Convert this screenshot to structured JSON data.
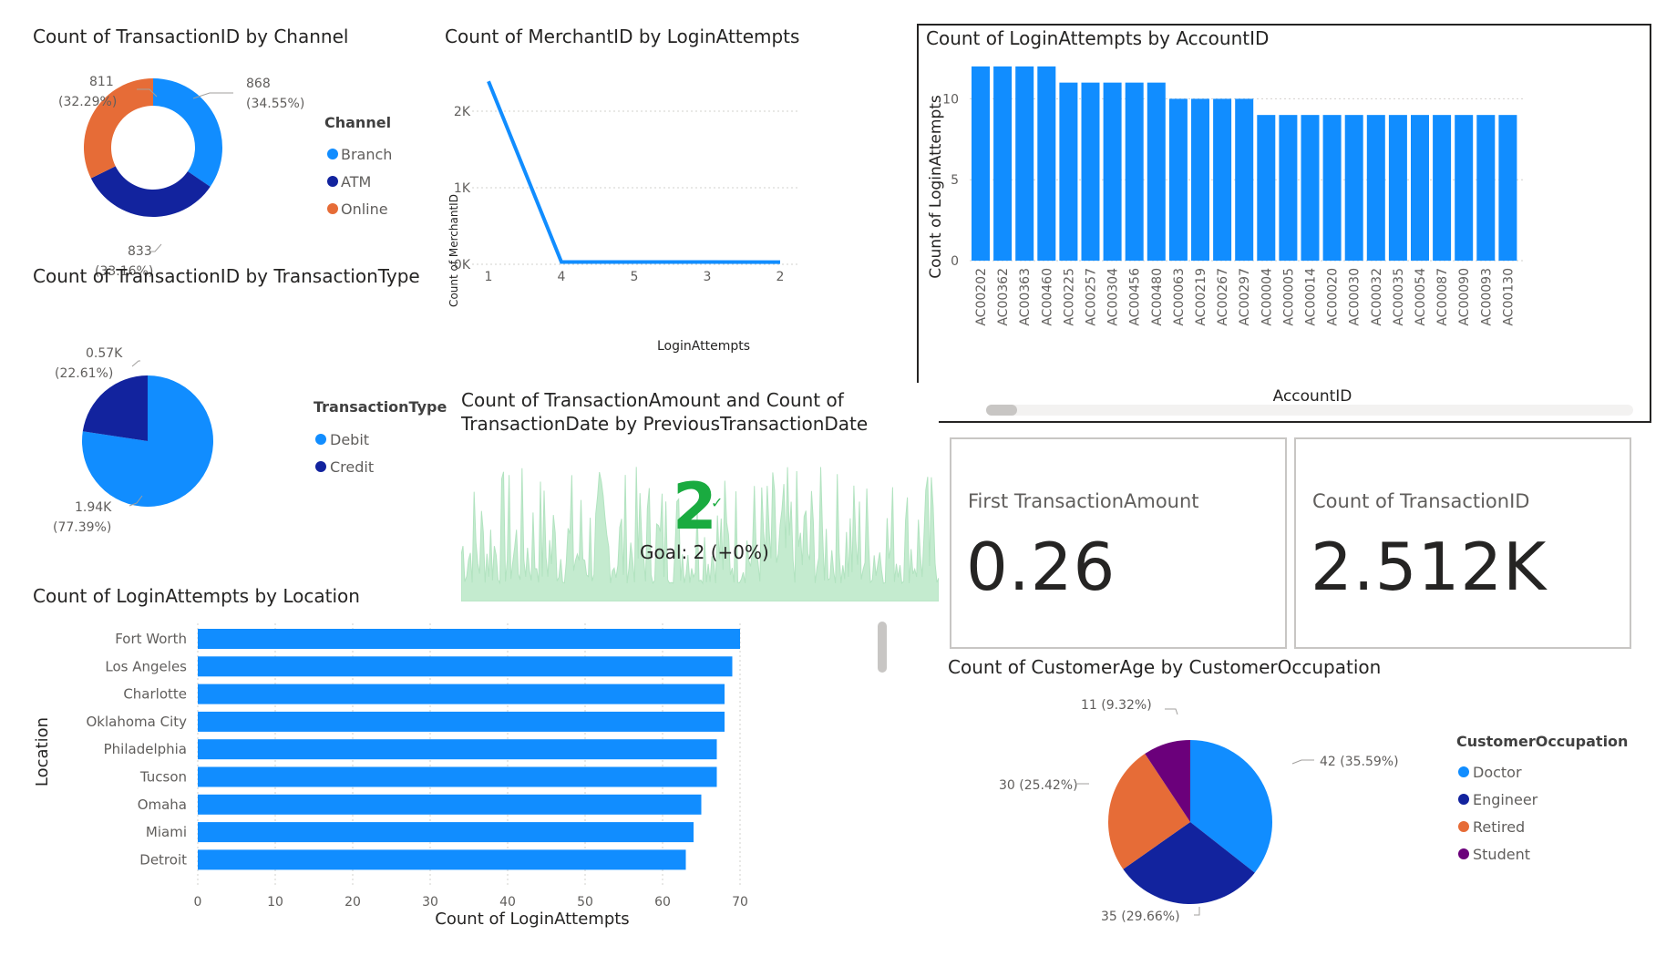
{
  "colors": {
    "blue": "#118dff",
    "navy": "#12239e",
    "orange": "#e66c37",
    "purple": "#6b007b",
    "green": "#1aab40",
    "sparkline": "#c4ebcf"
  },
  "donut": {
    "title": "Count of TransactionID by Channel",
    "legend_title": "Channel",
    "chart_data": {
      "type": "pie",
      "categories": [
        "Branch",
        "ATM",
        "Online"
      ],
      "values": [
        868,
        833,
        811
      ],
      "labels": [
        "868",
        "833",
        "811"
      ],
      "percents": [
        "(34.55%)",
        "(33.16%)",
        "(32.29%)"
      ]
    }
  },
  "txtype": {
    "title": "Count of TransactionID by TransactionType",
    "legend_title": "TransactionType",
    "chart_data": {
      "type": "pie",
      "categories": [
        "Debit",
        "Credit"
      ],
      "values": [
        1944,
        568
      ],
      "labels": [
        "1.94K",
        "0.57K"
      ],
      "percents": [
        "(77.39%)",
        "(22.61%)"
      ]
    }
  },
  "merchant": {
    "title": "Count of MerchantID by LoginAttempts",
    "chart_data": {
      "type": "line",
      "x": [
        "1",
        "4",
        "5",
        "3",
        "2"
      ],
      "values": [
        2390,
        30,
        30,
        30,
        28
      ],
      "ylim": [
        0,
        2500
      ],
      "yticks": [
        "0K",
        "1K",
        "2K"
      ],
      "xlabel": "LoginAttempts",
      "ylabel": "Count of MerchantID"
    }
  },
  "accounts": {
    "title": "Count of LoginAttempts by AccountID",
    "chart_data": {
      "type": "bar",
      "categories": [
        "AC00202",
        "AC00362",
        "AC00363",
        "AC00460",
        "AC00225",
        "AC00257",
        "AC00304",
        "AC00456",
        "AC00480",
        "AC00063",
        "AC00219",
        "AC00267",
        "AC00297",
        "AC00004",
        "AC00005",
        "AC00014",
        "AC00020",
        "AC00030",
        "AC00032",
        "AC00035",
        "AC00054",
        "AC00087",
        "AC00090",
        "AC00093",
        "AC00130"
      ],
      "values": [
        12,
        12,
        12,
        12,
        11,
        11,
        11,
        11,
        11,
        10,
        10,
        10,
        10,
        9,
        9,
        9,
        9,
        9,
        9,
        9,
        9,
        9,
        9,
        9,
        9
      ],
      "ylim": [
        0,
        12.5
      ],
      "yticks": [
        "0",
        "5",
        "10"
      ],
      "xlabel": "AccountID",
      "ylabel": "Count of LoginAttempts"
    }
  },
  "kpi": {
    "title": "Count of TransactionAmount and Count of TransactionDate by PreviousTransactionDate",
    "value": "2",
    "goal": "Goal: 2 (+0%)"
  },
  "cards": {
    "first_amount_label": "First TransactionAmount",
    "first_amount_value": "0.26",
    "count_label": "Count of TransactionID",
    "count_value": "2.512K"
  },
  "location": {
    "title": "Count of LoginAttempts by Location",
    "chart_data": {
      "type": "bar",
      "orientation": "horizontal",
      "categories": [
        "Fort Worth",
        "Los Angeles",
        "Charlotte",
        "Oklahoma City",
        "Philadelphia",
        "Tucson",
        "Omaha",
        "Miami",
        "Detroit"
      ],
      "values": [
        70,
        69,
        68,
        68,
        67,
        67,
        65,
        64,
        63
      ],
      "xlim": [
        0,
        70
      ],
      "xticks": [
        "0",
        "10",
        "20",
        "30",
        "40",
        "50",
        "60",
        "70"
      ],
      "xlabel": "Count of LoginAttempts",
      "ylabel": "Location"
    }
  },
  "occupation": {
    "title": "Count of CustomerAge by CustomerOccupation",
    "legend_title": "CustomerOccupation",
    "chart_data": {
      "type": "pie",
      "categories": [
        "Doctor",
        "Engineer",
        "Retired",
        "Student"
      ],
      "values": [
        42,
        35,
        30,
        11
      ],
      "labels": [
        "42 (35.59%)",
        "35 (29.66%)",
        "30 (25.42%)",
        "11 (9.32%)"
      ]
    }
  }
}
